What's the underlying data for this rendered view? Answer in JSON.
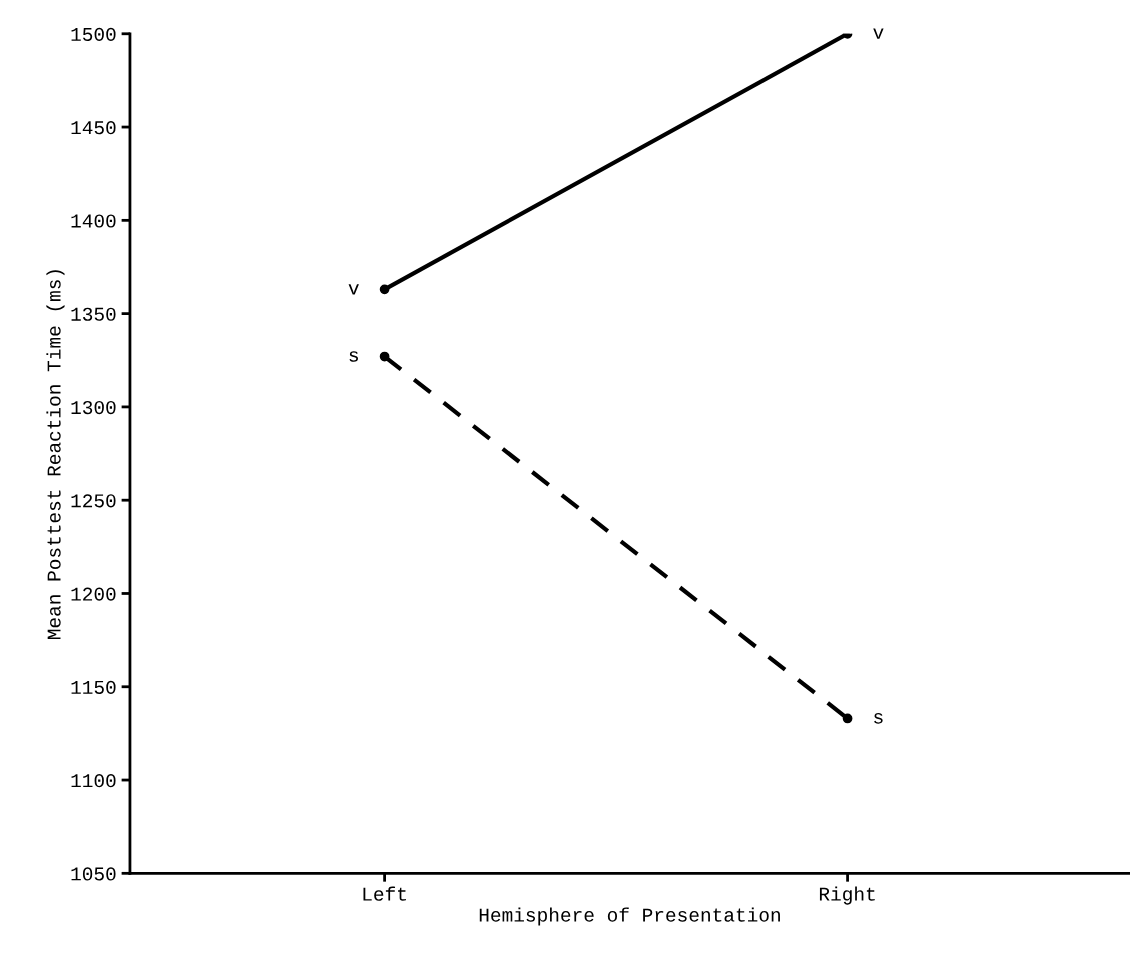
{
  "chart_data": {
    "type": "line",
    "xlabel": "Hemisphere of Presentation",
    "ylabel": "Mean Posttest Reaction Time (ms)",
    "categories": [
      "Left",
      "Right"
    ],
    "series": [
      {
        "name": "v",
        "color": "#000000",
        "values": [
          1363,
          1500
        ],
        "line_style": "solid"
      },
      {
        "name": "s",
        "color": "#000000",
        "values": [
          1327,
          1133
        ],
        "line_style": "dashed"
      }
    ],
    "ylim": [
      1050,
      1500
    ],
    "yticks": [
      1050,
      1100,
      1150,
      1200,
      1250,
      1300,
      1350,
      1400,
      1450,
      1500
    ],
    "marker": "circle",
    "grid": false,
    "legend": false
  }
}
